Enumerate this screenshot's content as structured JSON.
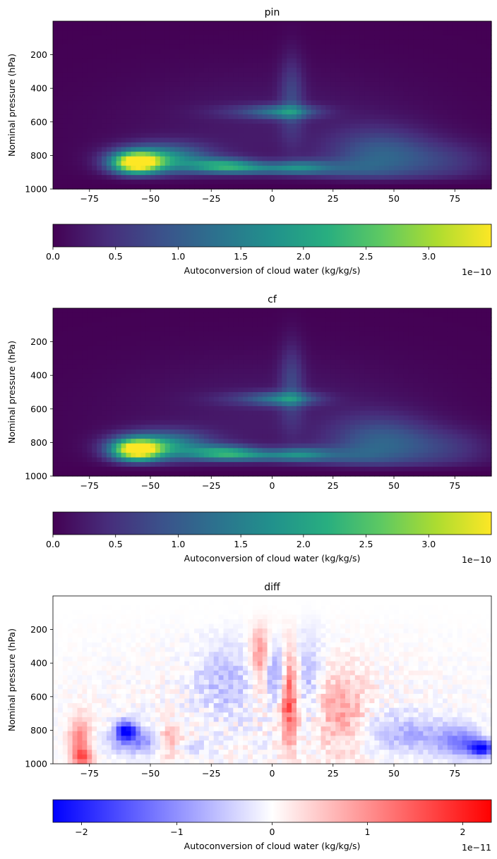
{
  "chart_data": [
    {
      "type": "heatmap",
      "title": "pin",
      "xlabel": "",
      "ylabel": "Nominal pressure (hPa)",
      "xlim": [
        -90,
        90
      ],
      "ylim": [
        1000,
        0
      ],
      "xticks": [
        -75,
        -50,
        -25,
        0,
        25,
        50,
        75
      ],
      "yticks": [
        200,
        400,
        600,
        800,
        1000
      ],
      "colormap": "viridis",
      "grid": false,
      "colorbar": {
        "label": "Autoconversion of cloud water (kg/kg/s)",
        "range": [
          0,
          3.5
        ],
        "ticks": [
          0.0,
          0.5,
          1.0,
          1.5,
          2.0,
          2.5,
          3.0
        ],
        "tick_labels": [
          "0.0",
          "0.5",
          "1.0",
          "1.5",
          "2.0",
          "2.5",
          "3.0"
        ],
        "offset_text": "1e−10",
        "orientation": "horizontal"
      },
      "features": [
        {
          "lat": -55,
          "pressure": 850,
          "value": 3.5
        },
        {
          "lat": -20,
          "pressure": 860,
          "value": 2.1
        },
        {
          "lat": 5,
          "pressure": 550,
          "value": 1.2
        },
        {
          "lat": 45,
          "pressure": 800,
          "value": 1.0
        },
        {
          "lat": 10,
          "pressure": 870,
          "value": 1.0
        }
      ]
    },
    {
      "type": "heatmap",
      "title": "cf",
      "xlabel": "",
      "ylabel": "Nominal pressure (hPa)",
      "xlim": [
        -90,
        90
      ],
      "ylim": [
        1000,
        0
      ],
      "xticks": [
        -75,
        -50,
        -25,
        0,
        25,
        50,
        75
      ],
      "yticks": [
        200,
        400,
        600,
        800,
        1000
      ],
      "colormap": "viridis",
      "grid": false,
      "colorbar": {
        "label": "Autoconversion of cloud water (kg/kg/s)",
        "range": [
          0,
          3.5
        ],
        "ticks": [
          0.0,
          0.5,
          1.0,
          1.5,
          2.0,
          2.5,
          3.0
        ],
        "tick_labels": [
          "0.0",
          "0.5",
          "1.0",
          "1.5",
          "2.0",
          "2.5",
          "3.0"
        ],
        "offset_text": "1e−10",
        "orientation": "horizontal"
      },
      "features": [
        {
          "lat": -55,
          "pressure": 850,
          "value": 3.4
        },
        {
          "lat": -20,
          "pressure": 860,
          "value": 2.0
        },
        {
          "lat": 5,
          "pressure": 550,
          "value": 1.2
        },
        {
          "lat": 45,
          "pressure": 800,
          "value": 1.0
        },
        {
          "lat": 10,
          "pressure": 870,
          "value": 1.0
        }
      ]
    },
    {
      "type": "heatmap",
      "title": "diff",
      "xlabel": "",
      "ylabel": "Nominal pressure (hPa)",
      "xlim": [
        -90,
        90
      ],
      "ylim": [
        1000,
        0
      ],
      "xticks": [
        -75,
        -50,
        -25,
        0,
        25,
        50,
        75
      ],
      "yticks": [
        200,
        400,
        600,
        800,
        1000
      ],
      "colormap": "bwr",
      "grid": false,
      "colorbar": {
        "label": "Autoconversion of cloud water (kg/kg/s)",
        "range": [
          -2.3,
          2.3
        ],
        "ticks": [
          -2,
          -1,
          0,
          1,
          2
        ],
        "tick_labels": [
          "−2",
          "−1",
          "0",
          "1",
          "2"
        ],
        "offset_text": "1e−11",
        "orientation": "horizontal"
      },
      "features": [
        {
          "lat": -60,
          "pressure": 800,
          "value": -2.2
        },
        {
          "lat": -78,
          "pressure": 970,
          "value": 1.5
        },
        {
          "lat": -42,
          "pressure": 860,
          "value": 1.0
        },
        {
          "lat": 7,
          "pressure": 600,
          "value": 1.6
        },
        {
          "lat": -5,
          "pressure": 350,
          "value": 1.0
        },
        {
          "lat": 2,
          "pressure": 450,
          "value": -1.0
        },
        {
          "lat": 85,
          "pressure": 900,
          "value": -1.8
        },
        {
          "lat": 28,
          "pressure": 700,
          "value": 0.8
        }
      ]
    }
  ]
}
